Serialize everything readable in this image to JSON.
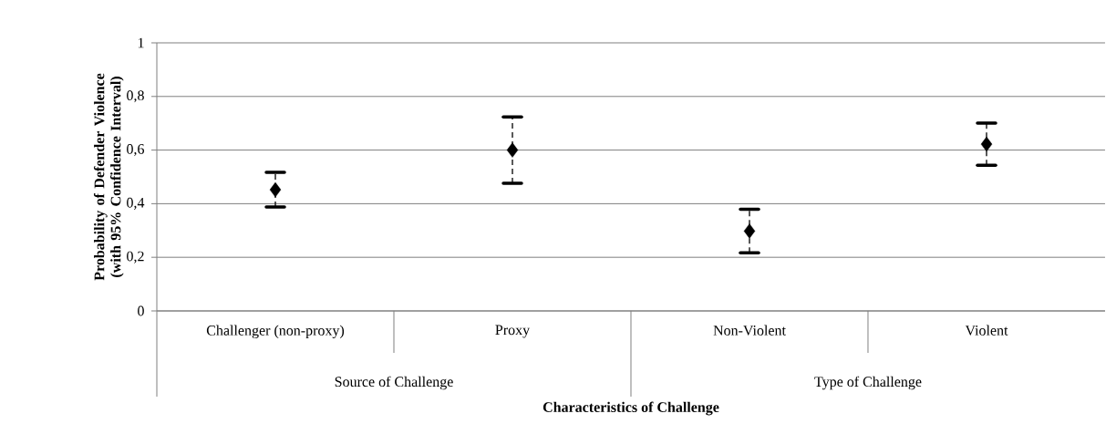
{
  "chart_data": {
    "type": "scatter",
    "xlabel": "Characteristics of Challenge",
    "ylabel": "Probability of Defender Violence (with 95% Confidence Interval)",
    "categories": [
      "Challenger (non-proxy)",
      "Proxy",
      "Non-Violent",
      "Violent"
    ],
    "values": [
      0.452,
      0.6,
      0.298,
      0.622
    ],
    "errors": [
      [
        0.388,
        0.517
      ],
      [
        0.476,
        0.724
      ],
      [
        0.217,
        0.379
      ],
      [
        0.543,
        0.701
      ]
    ],
    "color": "#000000",
    "marker": "diamond",
    "ylim": [
      0,
      1
    ],
    "yticks": [
      {
        "value": 0,
        "label": "0"
      },
      {
        "value": 0.2,
        "label": "0,2"
      },
      {
        "value": 0.4,
        "label": "0,4"
      },
      {
        "value": 0.6,
        "label": "0,6"
      },
      {
        "value": 0.8,
        "label": "0,8"
      },
      {
        "value": 1,
        "label": "1"
      }
    ],
    "grid": "y",
    "annotations": [
      "Source of Challenge",
      "Type of Challenge"
    ]
  }
}
